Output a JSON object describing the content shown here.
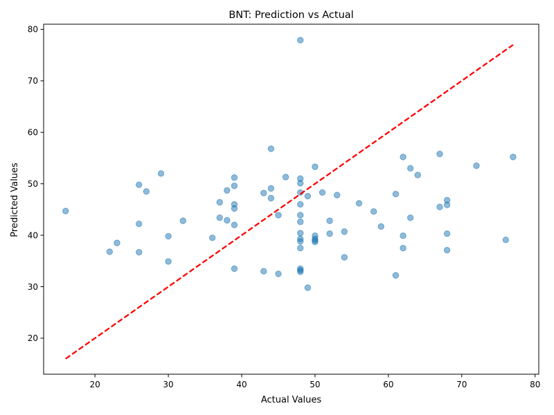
{
  "chart_data": {
    "type": "scatter",
    "title": "BNT: Prediction vs Actual",
    "xlabel": "Actual Values",
    "ylabel": "Predicted Values",
    "xlim": [
      13,
      80.5
    ],
    "ylim": [
      13,
      81
    ],
    "xticks": [
      20,
      30,
      40,
      50,
      60,
      70,
      80
    ],
    "yticks": [
      20,
      30,
      40,
      50,
      60,
      70,
      80
    ],
    "grid": false,
    "colors": {
      "points": "#1f77b4",
      "reference_line": "#ff0000"
    },
    "reference_line": {
      "style": "dashed",
      "x": [
        16,
        77
      ],
      "y": [
        16,
        77
      ]
    },
    "points": [
      {
        "x": 16,
        "y": 44.7
      },
      {
        "x": 22,
        "y": 36.8
      },
      {
        "x": 23,
        "y": 38.5
      },
      {
        "x": 26,
        "y": 49.8
      },
      {
        "x": 26,
        "y": 42.2
      },
      {
        "x": 26,
        "y": 36.7
      },
      {
        "x": 27,
        "y": 48.5
      },
      {
        "x": 29,
        "y": 52.0
      },
      {
        "x": 30,
        "y": 39.8
      },
      {
        "x": 30,
        "y": 34.9
      },
      {
        "x": 32,
        "y": 42.8
      },
      {
        "x": 36,
        "y": 39.5
      },
      {
        "x": 37,
        "y": 46.4
      },
      {
        "x": 37,
        "y": 43.4
      },
      {
        "x": 38,
        "y": 48.7
      },
      {
        "x": 38,
        "y": 42.9
      },
      {
        "x": 39,
        "y": 51.2
      },
      {
        "x": 39,
        "y": 49.6
      },
      {
        "x": 39,
        "y": 46.0
      },
      {
        "x": 39,
        "y": 45.2
      },
      {
        "x": 39,
        "y": 42.0
      },
      {
        "x": 39,
        "y": 33.5
      },
      {
        "x": 43,
        "y": 48.2
      },
      {
        "x": 43,
        "y": 33.0
      },
      {
        "x": 44,
        "y": 56.8
      },
      {
        "x": 44,
        "y": 49.1
      },
      {
        "x": 44,
        "y": 47.2
      },
      {
        "x": 45,
        "y": 43.9
      },
      {
        "x": 45,
        "y": 32.5
      },
      {
        "x": 46,
        "y": 51.3
      },
      {
        "x": 48,
        "y": 77.9
      },
      {
        "x": 48,
        "y": 51.0
      },
      {
        "x": 48,
        "y": 50.1
      },
      {
        "x": 48,
        "y": 48.3
      },
      {
        "x": 48,
        "y": 46.0
      },
      {
        "x": 48,
        "y": 43.9
      },
      {
        "x": 48,
        "y": 42.6
      },
      {
        "x": 48,
        "y": 40.4
      },
      {
        "x": 48,
        "y": 39.3
      },
      {
        "x": 48,
        "y": 38.8
      },
      {
        "x": 48,
        "y": 37.5
      },
      {
        "x": 48,
        "y": 33.5
      },
      {
        "x": 48,
        "y": 33.2
      },
      {
        "x": 48,
        "y": 32.9
      },
      {
        "x": 49,
        "y": 47.6
      },
      {
        "x": 49,
        "y": 29.8
      },
      {
        "x": 50,
        "y": 53.3
      },
      {
        "x": 50,
        "y": 39.9
      },
      {
        "x": 50,
        "y": 39.3
      },
      {
        "x": 50,
        "y": 39.0
      },
      {
        "x": 50,
        "y": 38.7
      },
      {
        "x": 51,
        "y": 48.3
      },
      {
        "x": 52,
        "y": 42.8
      },
      {
        "x": 52,
        "y": 40.3
      },
      {
        "x": 53,
        "y": 47.8
      },
      {
        "x": 54,
        "y": 40.7
      },
      {
        "x": 54,
        "y": 35.7
      },
      {
        "x": 56,
        "y": 46.2
      },
      {
        "x": 58,
        "y": 44.6
      },
      {
        "x": 59,
        "y": 41.7
      },
      {
        "x": 61,
        "y": 48.0
      },
      {
        "x": 61,
        "y": 32.2
      },
      {
        "x": 62,
        "y": 55.2
      },
      {
        "x": 62,
        "y": 39.9
      },
      {
        "x": 62,
        "y": 37.5
      },
      {
        "x": 63,
        "y": 53.0
      },
      {
        "x": 63,
        "y": 43.4
      },
      {
        "x": 64,
        "y": 51.7
      },
      {
        "x": 67,
        "y": 55.8
      },
      {
        "x": 67,
        "y": 45.5
      },
      {
        "x": 68,
        "y": 46.8
      },
      {
        "x": 68,
        "y": 45.9
      },
      {
        "x": 68,
        "y": 40.3
      },
      {
        "x": 68,
        "y": 37.1
      },
      {
        "x": 72,
        "y": 53.5
      },
      {
        "x": 76,
        "y": 39.1
      },
      {
        "x": 77,
        "y": 55.2
      }
    ]
  }
}
